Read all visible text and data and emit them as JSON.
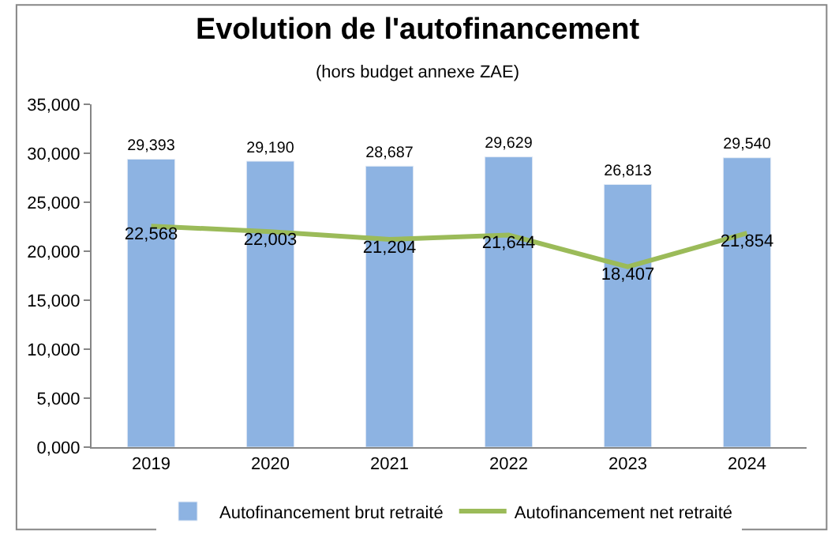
{
  "chart_data": {
    "type": "bar",
    "title": "Evolution de l'autofinancement",
    "subtitle": "(hors budget annexe ZAE)",
    "categories": [
      "2019",
      "2020",
      "2021",
      "2022",
      "2023",
      "2024"
    ],
    "series": [
      {
        "name": "Autofinancement brut retraité",
        "color": "#8db3e2",
        "values": [
          29393,
          29190,
          28687,
          29629,
          26813,
          29540
        ],
        "value_labels": [
          "29,393",
          "29,190",
          "28,687",
          "29,629",
          "26,813",
          "29,540"
        ]
      },
      {
        "name": "Autofinancement net retraité",
        "type": "line",
        "color": "#9bbb59",
        "marker": "none",
        "values": [
          22568,
          22003,
          21204,
          21644,
          18407,
          21854
        ],
        "value_labels": [
          "22,568",
          "22,003",
          "21,204",
          "21,644",
          "18,407",
          "21,854"
        ]
      }
    ],
    "ylim": [
      0,
      35000
    ],
    "yticks": [
      {
        "value": 0,
        "label": "0,000"
      },
      {
        "value": 5000,
        "label": "5,000"
      },
      {
        "value": 10000,
        "label": "10,000"
      },
      {
        "value": 15000,
        "label": "15,000"
      },
      {
        "value": 20000,
        "label": "20,000"
      },
      {
        "value": 25000,
        "label": "25,000"
      },
      {
        "value": 30000,
        "label": "30,000"
      },
      {
        "value": 35000,
        "label": "35,000"
      }
    ],
    "grid": false,
    "legend": "bottom"
  }
}
